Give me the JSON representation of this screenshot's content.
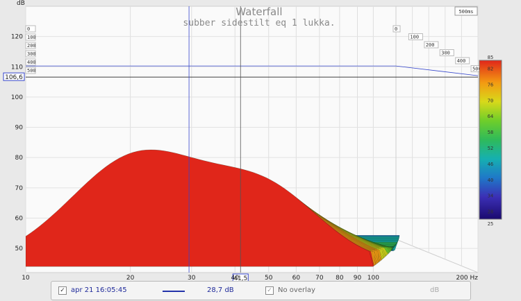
{
  "chart_data": {
    "type": "waterfall",
    "title": "Waterfall",
    "subtitle": "subber sidestilt eq 1 lukka.",
    "ylabel": "dB",
    "xunit": "Hz",
    "time_window_label": "500ms",
    "x_ticks": [
      "10",
      "20",
      "30",
      "40",
      "50",
      "60",
      "70",
      "80",
      "90",
      "100",
      "200"
    ],
    "x_tick_values": [
      10,
      20,
      30,
      40,
      50,
      60,
      70,
      80,
      90,
      100,
      200
    ],
    "y_ticks": [
      "50",
      "60",
      "70",
      "80",
      "90",
      "100",
      "110",
      "120"
    ],
    "y_tick_values": [
      50,
      60,
      70,
      80,
      90,
      100,
      110,
      120
    ],
    "xlim": [
      10,
      200
    ],
    "ylim": [
      42,
      130
    ],
    "x_scale": "log",
    "time_ticks": [
      "0",
      "100",
      "200",
      "300",
      "400",
      "500"
    ],
    "time_ticks_ms": [
      0,
      100,
      200,
      300,
      400,
      500
    ],
    "cursor_y_label": "106,6",
    "cursor_y_value": 106.6,
    "cursor_x_label": "41,5",
    "cursor_x_value": 41.5,
    "colorbar": {
      "range": [
        25,
        85
      ],
      "tick_labels": [
        "25",
        "28",
        "34",
        "40",
        "46",
        "52",
        "58",
        "64",
        "70",
        "76",
        "82",
        "85"
      ],
      "tick_values": [
        25,
        28,
        34,
        40,
        46,
        52,
        58,
        64,
        70,
        76,
        82,
        85
      ]
    }
  },
  "legend": {
    "checked_mark": "✓",
    "measurement_label": "apr 21 16:05:45",
    "line_color": "#2233aa",
    "value": "28,7 dB",
    "overlay_label": "No overlay",
    "unit": "dB"
  }
}
